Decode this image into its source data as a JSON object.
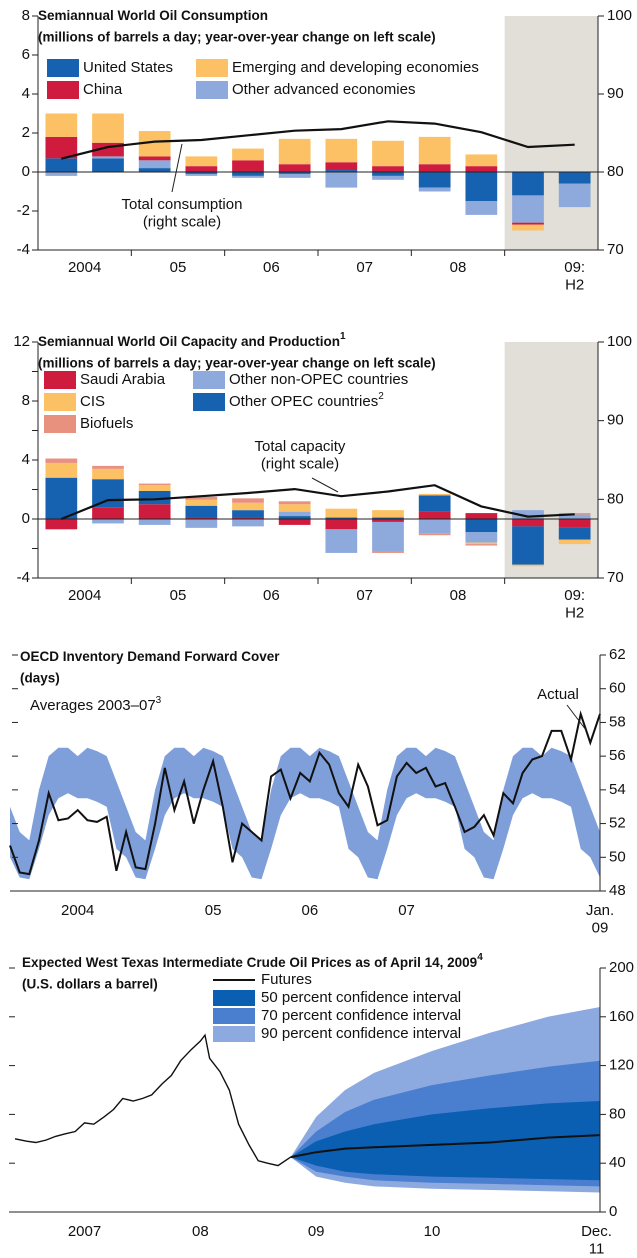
{
  "chart_data": [
    {
      "type": "stacked_bar",
      "title": "Semiannual World Oil Consumption",
      "subtitle": "(millions of barrels a day; year-over-year change on left scale)",
      "categories": [
        "2004",
        null,
        "05",
        null,
        "06",
        null,
        "07",
        null,
        "08",
        null,
        null,
        "09:\nH2"
      ],
      "series": [
        {
          "name": "United States",
          "color": "#1762b0",
          "values": [
            0.7,
            0.7,
            0.2,
            -0.1,
            -0.2,
            -0.1,
            0.1,
            -0.2,
            -0.8,
            -1.5,
            -1.2,
            -0.6
          ]
        },
        {
          "name": "Other advanced economies",
          "color": "#8ea9dc",
          "values": [
            -0.2,
            0.1,
            0.4,
            -0.1,
            -0.1,
            -0.2,
            -0.8,
            -0.2,
            -0.2,
            -0.7,
            -1.4,
            -1.2
          ]
        },
        {
          "name": "China",
          "color": "#cf1c3e",
          "values": [
            1.1,
            0.7,
            0.2,
            0.3,
            0.6,
            0.4,
            0.4,
            0.3,
            0.4,
            0.3,
            -0.1,
            0
          ]
        },
        {
          "name": "Emerging and developing economies",
          "color": "#fbc164",
          "values": [
            1.2,
            1.5,
            1.3,
            0.5,
            0.6,
            1.3,
            1.2,
            1.3,
            1.4,
            0.6,
            -0.3,
            0
          ]
        }
      ],
      "line": {
        "label": "Total consumption\n(right scale)",
        "axis": "y2",
        "color": "#111",
        "values": [
          81.7,
          83.2,
          83.9,
          84.1,
          84.7,
          85.3,
          85.5,
          86.5,
          86.2,
          85.1,
          83.2,
          83.5
        ]
      },
      "ylim": [
        -4,
        8
      ],
      "yticks": [
        -4,
        -2,
        0,
        2,
        4,
        6,
        8
      ],
      "y2lim": [
        70,
        100
      ],
      "y2ticks": [
        70,
        80,
        90,
        100
      ]
    },
    {
      "type": "stacked_bar",
      "title": "Semiannual World Oil Capacity and Production",
      "title_note": "1",
      "subtitle": "(millions of barrels a day; year-over-year change on left scale)",
      "categories": [
        "2004",
        null,
        "05",
        null,
        "06",
        null,
        "07",
        null,
        "08",
        null,
        null,
        "09:\nH2"
      ],
      "series": [
        {
          "name": "Saudi Arabia",
          "color": "#cf1c3e",
          "values": [
            -0.7,
            0.8,
            1.0,
            0.1,
            0.1,
            -0.4,
            -0.7,
            -0.2,
            0.5,
            0.4,
            -0.5,
            -0.6
          ]
        },
        {
          "name": "Other OPEC countries",
          "note": "2",
          "color": "#1762b0",
          "values": [
            2.8,
            1.9,
            0.9,
            0.8,
            0.5,
            0.2,
            0.1,
            0.1,
            1.1,
            -0.9,
            -2.6,
            -0.8
          ]
        },
        {
          "name": "Other non-OPEC countries",
          "color": "#8ea9dc",
          "values": [
            0,
            -0.3,
            -0.4,
            -0.6,
            -0.5,
            0.3,
            -1.6,
            -2.0,
            -1.0,
            -0.7,
            0.6,
            0.3
          ]
        },
        {
          "name": "CIS",
          "color": "#fbc164",
          "values": [
            1.0,
            0.7,
            0.4,
            0.4,
            0.5,
            0.5,
            0.6,
            0.5,
            0.1,
            -0.1,
            -0.1,
            -0.3
          ]
        },
        {
          "name": "Biofuels",
          "color": "#e8917f",
          "values": [
            0.3,
            0.2,
            0.1,
            0.2,
            0.3,
            0.2,
            0,
            -0.1,
            -0.1,
            -0.1,
            0,
            0.1
          ]
        }
      ],
      "line": {
        "label": "Total capacity\n(right scale)",
        "axis": "y2",
        "color": "#111",
        "values": [
          77.5,
          79.9,
          80.0,
          80.4,
          80.8,
          81.3,
          80.4,
          81.0,
          81.8,
          79.1,
          77.8,
          78.1
        ]
      },
      "ylim": [
        -4,
        12
      ],
      "yticks": [
        -4,
        0,
        4,
        8,
        12
      ],
      "yminor": [
        -2,
        2,
        6,
        10
      ],
      "y2lim": [
        70,
        100
      ],
      "y2ticks": [
        70,
        80,
        90,
        100
      ]
    },
    {
      "type": "line_band",
      "title": "OECD Inventory Demand Forward Cover",
      "subtitle": "(days)",
      "categories": [
        null,
        null,
        null,
        null,
        null,
        null,
        null,
        "2004",
        null,
        null,
        null,
        null,
        null,
        null,
        null,
        null,
        null,
        null,
        null,
        null,
        null,
        "05",
        null,
        null,
        null,
        null,
        null,
        null,
        null,
        null,
        null,
        "06",
        null,
        null,
        null,
        null,
        null,
        null,
        null,
        null,
        null,
        "07",
        null,
        null,
        null,
        null,
        null,
        null,
        null,
        null,
        null,
        null,
        null,
        null,
        null,
        null,
        null,
        null,
        null,
        null,
        null,
        "Jan.\n09"
      ],
      "series": [
        {
          "name": "Actual",
          "color": "#111",
          "values": [
            50.7,
            49.1,
            49.0,
            51.0,
            53.8,
            52.2,
            52.3,
            52.8,
            52.2,
            52.1,
            52.4,
            49.2,
            51.5,
            49.4,
            49.3,
            52.0,
            55.3,
            52.8,
            54.5,
            52.0,
            54.0,
            55.7,
            53.0,
            49.7,
            52.0,
            51.5,
            51.0,
            54.8,
            55.2,
            53.5,
            55.0,
            54.5,
            56.2,
            55.5,
            53.8,
            53.0,
            55.5,
            54.2,
            51.9,
            52.2,
            54.8,
            55.6,
            55.0,
            55.3,
            54.2,
            54.4,
            53.0,
            51.5,
            51.8,
            52.5,
            51.3,
            53.8,
            53.2,
            55.0,
            55.8,
            56.0,
            57.5,
            57.5,
            55.8,
            58.5,
            56.8,
            58.5
          ]
        }
      ],
      "band": {
        "name": "Averages 2003–07",
        "note": "3",
        "color": "#7f9fdb",
        "upper": [
          53,
          51.5,
          51,
          54,
          56,
          56.5,
          56.5,
          56,
          56.5,
          56.3,
          56,
          54.5,
          53,
          51.5,
          51,
          54,
          56,
          56.5,
          56.5,
          56,
          56.5,
          56.3,
          56,
          54.5,
          53,
          51.5,
          51,
          54,
          56,
          56.5,
          56.5,
          56,
          56.5,
          56.3,
          56,
          54.5,
          53,
          51.5,
          51,
          54,
          56,
          56.5,
          56.5,
          56,
          56.5,
          56.3,
          56,
          54.5,
          53,
          51.5,
          51,
          54,
          56,
          56.5,
          56.5,
          56,
          56.5,
          56.3,
          56,
          54.5,
          53,
          51.5
        ],
        "lower": [
          50,
          48.8,
          48.7,
          50.5,
          52.5,
          53.5,
          53.8,
          53.5,
          53.5,
          53.3,
          53,
          50.5,
          50,
          48.8,
          48.7,
          50.5,
          52.5,
          53.5,
          53.8,
          53.5,
          53.5,
          53.3,
          53,
          50.5,
          50,
          48.8,
          48.7,
          50.5,
          52.5,
          53.5,
          53.8,
          53.5,
          53.5,
          53.3,
          53,
          50.5,
          50,
          48.8,
          48.7,
          50.5,
          52.5,
          53.5,
          53.8,
          53.5,
          53.5,
          53.3,
          53,
          50.5,
          50,
          48.8,
          48.7,
          50.5,
          52.5,
          53.5,
          53.8,
          53.5,
          53.5,
          53.3,
          53,
          50.5,
          50,
          48.8
        ]
      },
      "ylim": [
        48,
        62
      ],
      "yticks": [
        48,
        50,
        52,
        54,
        56,
        58,
        60,
        62
      ]
    },
    {
      "type": "fan",
      "title": "Expected West Texas Intermediate Crude Oil Prices as of April 14, 2009",
      "title_note": "4",
      "subtitle": "(U.S. dollars a barrel)",
      "history": {
        "color": "#111",
        "x": [
          2006.9,
          2007.0,
          2007.08,
          2007.17,
          2007.25,
          2007.33,
          2007.42,
          2007.5,
          2007.58,
          2007.67,
          2007.75,
          2007.83,
          2007.92,
          2008.0,
          2008.08,
          2008.17,
          2008.25,
          2008.33,
          2008.42,
          2008.5,
          2008.54,
          2008.58,
          2008.67,
          2008.75,
          2008.83,
          2008.92,
          2009.0,
          2009.08,
          2009.17,
          2009.28
        ],
        "values": [
          60,
          58,
          57,
          59,
          62,
          64,
          66,
          73,
          72,
          78,
          84,
          93,
          91,
          93,
          96,
          105,
          112,
          124,
          133,
          140,
          145,
          126,
          115,
          100,
          72,
          55,
          42,
          40,
          38,
          45
        ]
      },
      "forecast_x": [
        2009.28,
        2009.5,
        2009.75,
        2010.0,
        2010.5,
        2011.0,
        2011.5,
        2011.95
      ],
      "series": [
        {
          "name": "Futures",
          "color": "#111",
          "values": [
            45,
            49,
            52,
            53,
            55,
            57,
            61,
            63
          ]
        }
      ],
      "bands": [
        {
          "name": "50 percent confidence interval",
          "color": "#0a5fb2",
          "upper": [
            45,
            58,
            66,
            72,
            80,
            85,
            89,
            91
          ],
          "lower": [
            45,
            38,
            33,
            31,
            29,
            28,
            27,
            26
          ]
        },
        {
          "name": "70 percent confidence interval",
          "color": "#4a7fcf",
          "upper": [
            45,
            66,
            82,
            92,
            104,
            112,
            119,
            124
          ],
          "lower": [
            45,
            33,
            29,
            26,
            24,
            23,
            22,
            21
          ]
        },
        {
          "name": "90 percent confidence interval",
          "color": "#8ca9e0",
          "upper": [
            45,
            78,
            100,
            114,
            132,
            147,
            160,
            168
          ],
          "lower": [
            45,
            29,
            24,
            21,
            19,
            18,
            17,
            16
          ]
        }
      ],
      "xlim": [
        2006.9,
        2011.95
      ],
      "xticks": [
        {
          "value": 2007.5,
          "label": "2007"
        },
        {
          "value": 2008.5,
          "label": "08"
        },
        {
          "value": 2009.5,
          "label": "09"
        },
        {
          "value": 2010.5,
          "label": "10"
        },
        {
          "value": 2011.92,
          "label": "Dec.\n11"
        }
      ],
      "ylim": [
        0,
        200
      ],
      "yticks": [
        0,
        40,
        80,
        120,
        160,
        200
      ]
    }
  ]
}
